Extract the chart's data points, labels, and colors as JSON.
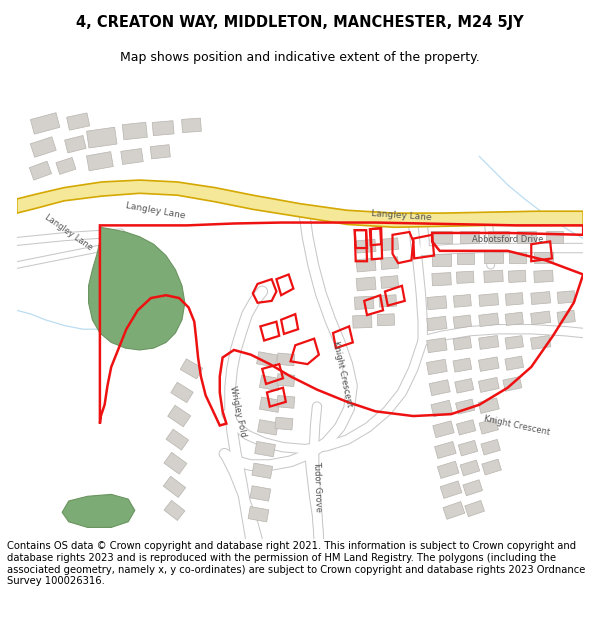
{
  "title_line1": "4, CREATON WAY, MIDDLETON, MANCHESTER, M24 5JY",
  "title_line2": "Map shows position and indicative extent of the property.",
  "footer_text": "Contains OS data © Crown copyright and database right 2021. This information is subject to Crown copyright and database rights 2023 and is reproduced with the permission of HM Land Registry. The polygons (including the associated geometry, namely x, y co-ordinates) are subject to Crown copyright and database rights 2023 Ordnance Survey 100026316.",
  "title_fontsize": 10,
  "footer_fontsize": 7.5,
  "map_bg_color": "#f2f0ed",
  "road_main_fill": "#f5e899",
  "road_main_border": "#d4a800",
  "road_minor_fill": "#ffffff",
  "road_minor_border": "#c8c8c8",
  "building_fill": "#d4d0cb",
  "building_border": "#b8b4af",
  "green_fill": "#7dab75",
  "green_border": "#6a9560",
  "red_color": "#ee1111",
  "water_color": "#aad4f0",
  "text_dark": "#444444",
  "text_road": "#555555"
}
